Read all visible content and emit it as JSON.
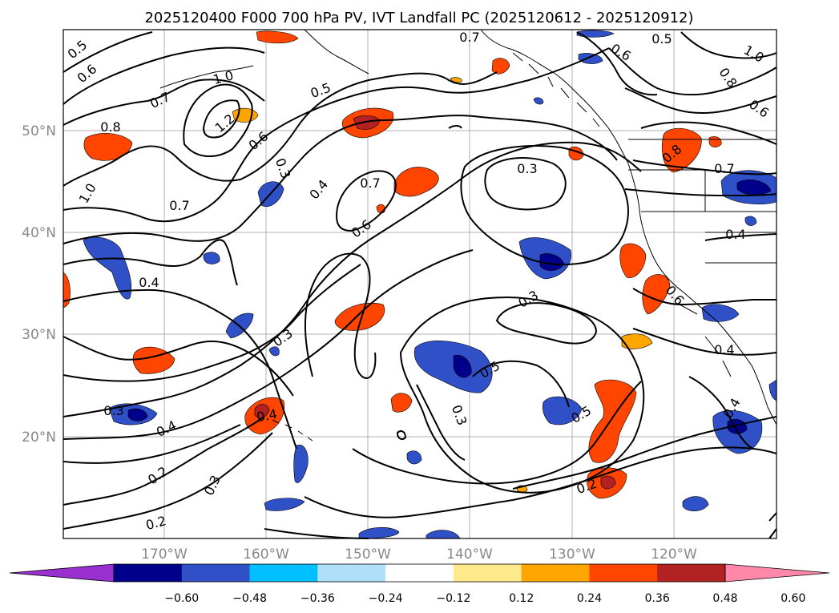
{
  "title": "2025120400 F000 700 hPa PV, IVT Landfall PC (2025120612 - 2025120912)",
  "lat_labels": [
    "50°N",
    "40°N",
    "30°N",
    "20°N"
  ],
  "lon_labels": [
    "170°W",
    "160°W",
    "150°W",
    "140°W",
    "130°W",
    "120°W"
  ],
  "colorbar": {
    "ticks": [
      "−0.60",
      "−0.48",
      "−0.36",
      "−0.24",
      "−0.12",
      "0.12",
      "0.24",
      "0.36",
      "0.48",
      "0.60"
    ],
    "colors": [
      "#9b30d0",
      "#00008b",
      "#3050c8",
      "#00bfff",
      "#aee0f8",
      "#ffffff",
      "#ffe98a",
      "#ffa500",
      "#ff4500",
      "#b22222",
      "#ff88aa"
    ]
  },
  "contour_labels": [
    {
      "text": "0.5"
    },
    {
      "text": "0.6"
    },
    {
      "text": "0.7"
    },
    {
      "text": "0.6"
    },
    {
      "text": "0.5"
    },
    {
      "text": "1.0"
    },
    {
      "text": "0.8"
    },
    {
      "text": "0.6"
    },
    {
      "text": "0.7"
    },
    {
      "text": "1.0"
    },
    {
      "text": "1.2"
    },
    {
      "text": "0.5"
    },
    {
      "text": "0.8"
    },
    {
      "text": "0.6"
    },
    {
      "text": "1.0"
    },
    {
      "text": "0.7"
    },
    {
      "text": "0.6"
    },
    {
      "text": "0.4"
    },
    {
      "text": "0.3"
    },
    {
      "text": "0.7"
    },
    {
      "text": "0.3"
    },
    {
      "text": "0.8"
    },
    {
      "text": "0.7"
    },
    {
      "text": "0.4"
    },
    {
      "text": "0.6"
    },
    {
      "text": "0.4"
    },
    {
      "text": "0.3"
    },
    {
      "text": "0.3"
    },
    {
      "text": "0.4"
    },
    {
      "text": "0.5"
    },
    {
      "text": "0.3"
    },
    {
      "text": "0.4"
    },
    {
      "text": "0.3"
    },
    {
      "text": "0.4"
    },
    {
      "text": "0.5"
    },
    {
      "text": "0.4"
    },
    {
      "text": "0.2"
    },
    {
      "text": "0.3"
    },
    {
      "text": "0.2"
    },
    {
      "text": "0.2"
    }
  ]
}
